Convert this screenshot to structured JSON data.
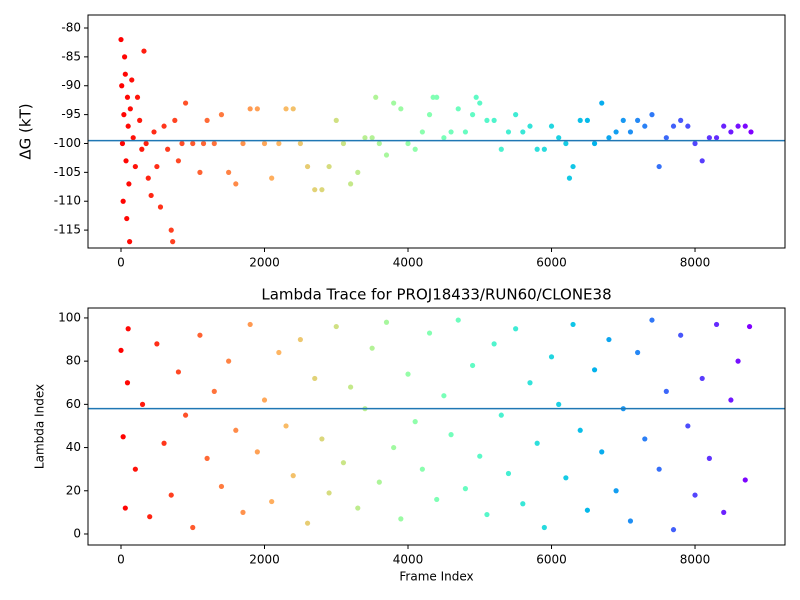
{
  "chart_data": [
    {
      "type": "scatter",
      "ylabel": "ΔG (kT)",
      "colormap": "rainbow_r",
      "hline": -99.5,
      "hline_color": "#1f77b4",
      "xlim": [
        -460,
        9254
      ],
      "ylim": [
        -118.1,
        -77.75
      ],
      "xticks": [
        0,
        2000,
        4000,
        6000,
        8000
      ],
      "yticks": [
        -80,
        -85,
        -90,
        -95,
        -100,
        -105,
        -110,
        -115
      ],
      "x": [
        0,
        10,
        20,
        30,
        40,
        50,
        60,
        70,
        80,
        90,
        100,
        110,
        120,
        130,
        150,
        170,
        200,
        230,
        260,
        290,
        320,
        350,
        380,
        420,
        460,
        500,
        550,
        600,
        650,
        700,
        720,
        750,
        800,
        850,
        900,
        1000,
        1100,
        1150,
        1200,
        1300,
        1400,
        1500,
        1600,
        1700,
        1800,
        1900,
        2000,
        2100,
        2200,
        2300,
        2400,
        2500,
        2600,
        2700,
        2800,
        2900,
        3000,
        3100,
        3200,
        3300,
        3400,
        3500,
        3550,
        3600,
        3700,
        3800,
        3900,
        4000,
        4100,
        4200,
        4300,
        4350,
        4400,
        4500,
        4600,
        4700,
        4800,
        4900,
        4950,
        5000,
        5100,
        5200,
        5300,
        5400,
        5500,
        5600,
        5700,
        5800,
        5900,
        6000,
        6100,
        6200,
        6250,
        6300,
        6400,
        6500,
        6600,
        6700,
        6800,
        6900,
        7000,
        7100,
        7200,
        7300,
        7400,
        7500,
        7600,
        7700,
        7800,
        7900,
        8000,
        8100,
        8200,
        8300,
        8400,
        8500,
        8600,
        8700,
        8780
      ],
      "values": [
        -82,
        -90,
        -100,
        -110,
        -95,
        -85,
        -88,
        -103,
        -113,
        -92,
        -97,
        -107,
        -117,
        -94,
        -89,
        -99,
        -104,
        -92,
        -96,
        -101,
        -84,
        -100,
        -106,
        -109,
        -98,
        -104,
        -111,
        -97,
        -101,
        -115,
        -117,
        -96,
        -103,
        -100,
        -93,
        -100,
        -105,
        -100,
        -96,
        -100,
        -95,
        -105,
        -107,
        -100,
        -94,
        -94,
        -100,
        -106,
        -100,
        -94,
        -94,
        -100,
        -104,
        -108,
        -108,
        -104,
        -96,
        -100,
        -107,
        -105,
        -99,
        -99,
        -92,
        -100,
        -102,
        -93,
        -94,
        -100,
        -101,
        -98,
        -95,
        -92,
        -92,
        -99,
        -98,
        -94,
        -98,
        -95,
        -92,
        -93,
        -96,
        -96,
        -101,
        -98,
        -95,
        -98,
        -97,
        -101,
        -101,
        -97,
        -99,
        -100,
        -106,
        -104,
        -96,
        -96,
        -100,
        -93,
        -99,
        -98,
        -96,
        -98,
        -96,
        -97,
        -95,
        -104,
        -99,
        -97,
        -96,
        -97,
        -100,
        -103,
        -99,
        -99,
        -97,
        -98,
        -97,
        -97,
        -98
      ]
    },
    {
      "type": "scatter",
      "title": "Lambda Trace for PROJ18433/RUN60/CLONE38",
      "xlabel": "Frame Index",
      "ylabel": "Lambda Index",
      "colormap": "rainbow_r",
      "hline": 58,
      "hline_color": "#1f77b4",
      "xlim": [
        -460,
        9254
      ],
      "ylim": [
        -5.1,
        104.6
      ],
      "xticks": [
        0,
        2000,
        4000,
        6000,
        8000
      ],
      "yticks": [
        0,
        20,
        40,
        60,
        80,
        100
      ],
      "x": [
        0,
        30,
        60,
        90,
        100,
        200,
        300,
        400,
        500,
        600,
        700,
        800,
        900,
        1000,
        1100,
        1200,
        1300,
        1400,
        1500,
        1600,
        1700,
        1800,
        1900,
        2000,
        2100,
        2200,
        2300,
        2400,
        2500,
        2600,
        2700,
        2800,
        2900,
        3000,
        3100,
        3200,
        3300,
        3400,
        3500,
        3600,
        3700,
        3800,
        3900,
        4000,
        4100,
        4200,
        4300,
        4400,
        4500,
        4600,
        4700,
        4800,
        4900,
        5000,
        5100,
        5200,
        5300,
        5400,
        5500,
        5600,
        5700,
        5800,
        5900,
        6000,
        6100,
        6200,
        6300,
        6400,
        6500,
        6600,
        6700,
        6800,
        6900,
        7000,
        7100,
        7200,
        7300,
        7400,
        7500,
        7600,
        7700,
        7800,
        7900,
        8000,
        8100,
        8200,
        8300,
        8400,
        8500,
        8600,
        8700,
        8760
      ],
      "values": [
        85,
        45,
        12,
        70,
        95,
        30,
        60,
        8,
        88,
        42,
        18,
        75,
        55,
        3,
        92,
        35,
        66,
        22,
        80,
        48,
        10,
        97,
        38,
        62,
        15,
        84,
        50,
        27,
        90,
        5,
        72,
        44,
        19,
        96,
        33,
        68,
        12,
        58,
        86,
        24,
        98,
        40,
        7,
        74,
        52,
        30,
        93,
        16,
        64,
        46,
        99,
        21,
        78,
        36,
        9,
        88,
        55,
        28,
        95,
        14,
        70,
        42,
        3,
        82,
        60,
        26,
        97,
        48,
        11,
        76,
        38,
        90,
        20,
        58,
        6,
        84,
        44,
        99,
        30,
        66,
        2,
        92,
        50,
        18,
        72,
        35,
        97,
        10,
        62,
        80,
        25,
        96
      ]
    }
  ]
}
